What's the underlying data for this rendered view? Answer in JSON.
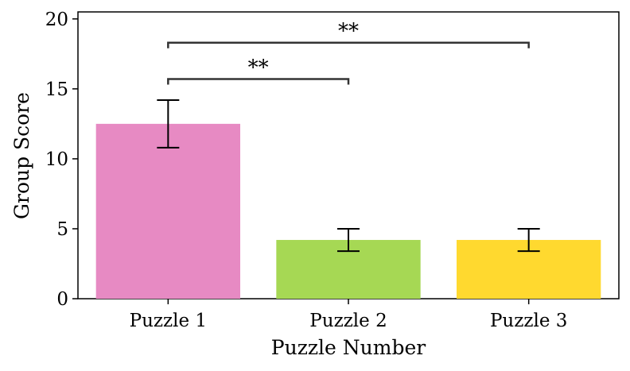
{
  "chart_data": {
    "type": "bar",
    "title": "",
    "xlabel": "Puzzle Number",
    "ylabel": "Group Score",
    "categories": [
      "Puzzle 1",
      "Puzzle 2",
      "Puzzle 3"
    ],
    "values": [
      12.5,
      4.2,
      4.2
    ],
    "error_low": [
      10.8,
      3.4,
      3.4
    ],
    "error_high": [
      14.2,
      5.0,
      5.0
    ],
    "colors": [
      "#e78ac3",
      "#a6d854",
      "#ffd92f"
    ],
    "ylim": [
      0,
      20.5
    ],
    "yticks": [
      0,
      5,
      10,
      15,
      20
    ],
    "ytick_labels": [
      "0",
      "5",
      "10",
      "15",
      "20"
    ],
    "grid": false,
    "significance": [
      {
        "from": 0,
        "to": 1,
        "y": 15.7,
        "label": "**"
      },
      {
        "from": 0,
        "to": 2,
        "y": 18.3,
        "label": "**"
      }
    ]
  }
}
